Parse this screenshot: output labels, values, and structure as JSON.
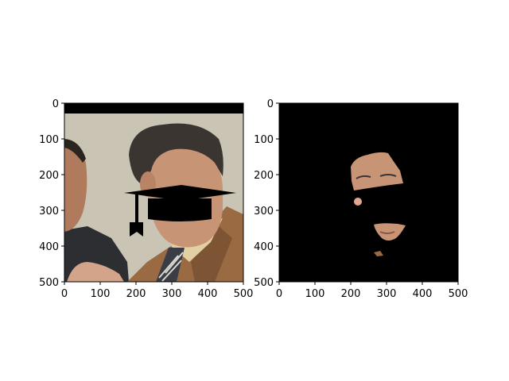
{
  "chart_data": [
    {
      "type": "image",
      "xlim": [
        0,
        500
      ],
      "ylim": [
        500,
        0
      ],
      "x_ticks": [
        "0",
        "100",
        "200",
        "300",
        "400",
        "500"
      ],
      "y_ticks": [
        "0",
        "100",
        "200",
        "300",
        "400",
        "500"
      ],
      "grid": false,
      "content": "photo of two men; man on right in brown jacket and striped tie with a black graduation-cap overlay and black bar across eyes/nose",
      "colors": {
        "wall": "#c9c4b4",
        "jacket": "#9a6a42",
        "skin": "#c89476",
        "hair": "#3a3530",
        "cap": "#000000"
      }
    },
    {
      "type": "image",
      "xlim": [
        0,
        500
      ],
      "ylim": [
        500,
        0
      ],
      "x_ticks": [
        "0",
        "100",
        "200",
        "300",
        "400",
        "500"
      ],
      "y_ticks": [
        "0",
        "100",
        "200",
        "300",
        "400",
        "500"
      ],
      "grid": false,
      "content": "segmentation-masked image: black background with visible skin fragments of the face",
      "colors": {
        "background": "#000000",
        "skin": "#c89476"
      }
    }
  ]
}
